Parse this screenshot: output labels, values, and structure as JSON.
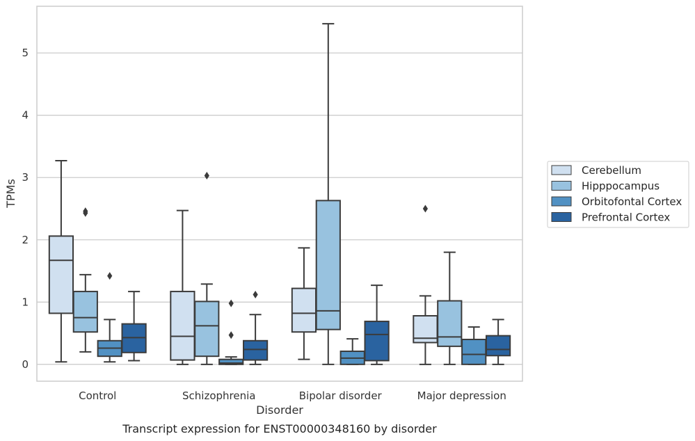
{
  "chart_data": {
    "type": "box",
    "title": "",
    "caption": "Transcript expression for ENST00000348160 by disorder",
    "xlabel": "Disorder",
    "ylabel": "TPMs",
    "ylim": [
      -0.27,
      5.75
    ],
    "yticks": [
      "0",
      "1",
      "2",
      "3",
      "4",
      "5"
    ],
    "grid": "horizontal",
    "legend_position": "right",
    "categories": [
      "Control",
      "Schizophrenia",
      "Bipolar disorder",
      "Major depression"
    ],
    "series": [
      {
        "name": "Cerebellum",
        "color": "#d0e0f0",
        "boxes": [
          {
            "whislo": 0.04,
            "q1": 0.82,
            "med": 1.67,
            "q3": 2.06,
            "whishi": 3.27,
            "fliers": []
          },
          {
            "whislo": 0.0,
            "q1": 0.07,
            "med": 0.45,
            "q3": 1.17,
            "whishi": 2.47,
            "fliers": []
          },
          {
            "whislo": 0.08,
            "q1": 0.52,
            "med": 0.82,
            "q3": 1.22,
            "whishi": 1.87,
            "fliers": []
          },
          {
            "whislo": 0.0,
            "q1": 0.35,
            "med": 0.42,
            "q3": 0.78,
            "whishi": 1.1,
            "fliers": [
              2.5
            ]
          }
        ]
      },
      {
        "name": "Hipppocampus",
        "color": "#98c2df",
        "boxes": [
          {
            "whislo": 0.2,
            "q1": 0.52,
            "med": 0.75,
            "q3": 1.17,
            "whishi": 1.44,
            "fliers": [
              2.43,
              2.46
            ]
          },
          {
            "whislo": 0.0,
            "q1": 0.13,
            "med": 0.62,
            "q3": 1.01,
            "whishi": 1.29,
            "fliers": [
              3.03
            ]
          },
          {
            "whislo": 0.0,
            "q1": 0.56,
            "med": 0.86,
            "q3": 2.63,
            "whishi": 5.47,
            "fliers": []
          },
          {
            "whislo": 0.0,
            "q1": 0.29,
            "med": 0.44,
            "q3": 1.02,
            "whishi": 1.8,
            "fliers": []
          }
        ]
      },
      {
        "name": "Orbitofontal Cortex",
        "color": "#5191c3",
        "boxes": [
          {
            "whislo": 0.04,
            "q1": 0.13,
            "med": 0.26,
            "q3": 0.38,
            "whishi": 0.72,
            "fliers": [
              1.42
            ]
          },
          {
            "whislo": 0.0,
            "q1": 0.0,
            "med": 0.02,
            "q3": 0.08,
            "whishi": 0.12,
            "fliers": [
              0.47,
              0.98
            ]
          },
          {
            "whislo": 0.0,
            "q1": 0.0,
            "med": 0.1,
            "q3": 0.21,
            "whishi": 0.41,
            "fliers": []
          },
          {
            "whislo": 0.0,
            "q1": 0.0,
            "med": 0.16,
            "q3": 0.4,
            "whishi": 0.6,
            "fliers": []
          }
        ]
      },
      {
        "name": "Prefrontal Cortex",
        "color": "#2a63a0",
        "boxes": [
          {
            "whislo": 0.06,
            "q1": 0.19,
            "med": 0.43,
            "q3": 0.65,
            "whishi": 1.17,
            "fliers": []
          },
          {
            "whislo": 0.0,
            "q1": 0.07,
            "med": 0.24,
            "q3": 0.38,
            "whishi": 0.8,
            "fliers": [
              1.12
            ]
          },
          {
            "whislo": 0.0,
            "q1": 0.06,
            "med": 0.48,
            "q3": 0.69,
            "whishi": 1.27,
            "fliers": []
          },
          {
            "whislo": 0.0,
            "q1": 0.14,
            "med": 0.24,
            "q3": 0.46,
            "whishi": 0.72,
            "fliers": []
          }
        ]
      }
    ]
  }
}
